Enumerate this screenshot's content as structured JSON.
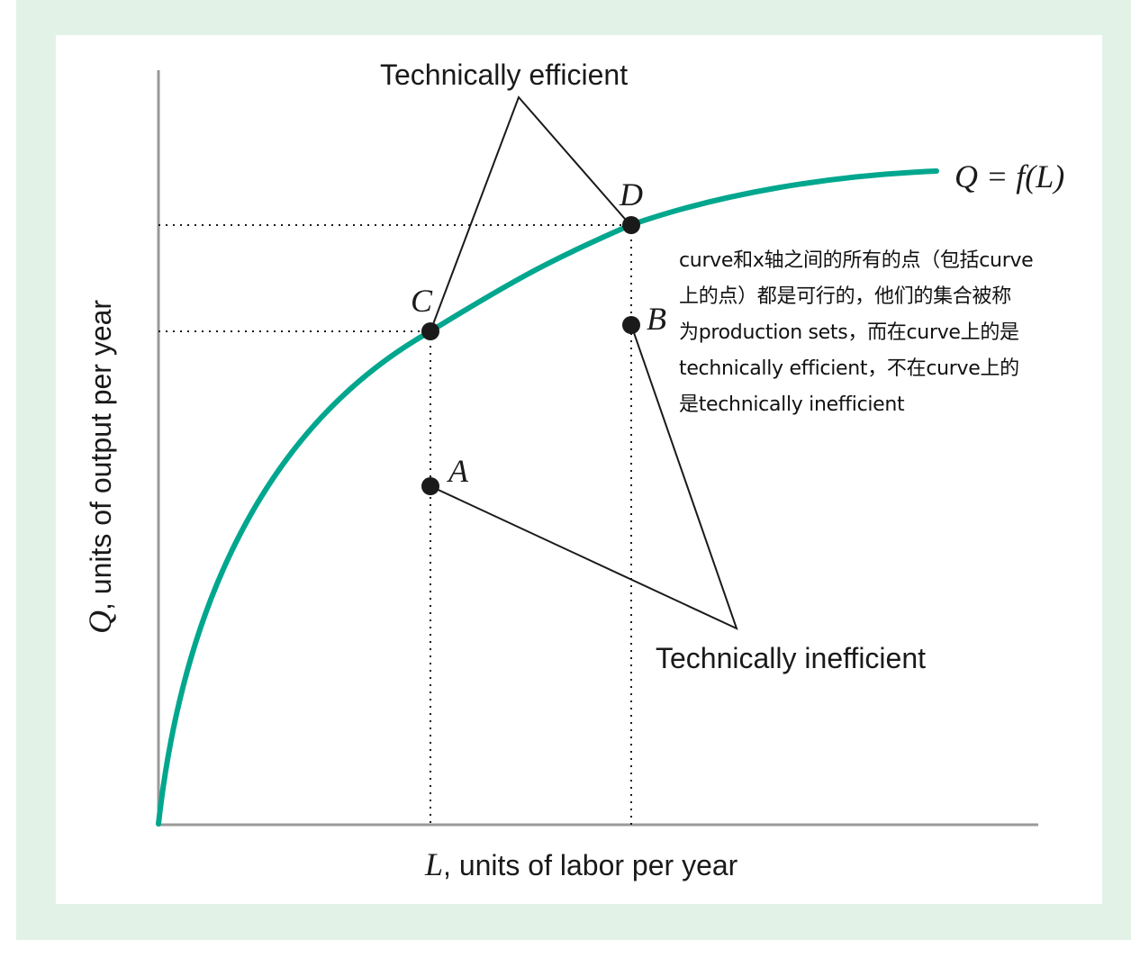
{
  "colors": {
    "curve": "#00a78e",
    "axis": "#999999",
    "ink": "#1a1a1a",
    "frame": "#e2f2e7"
  },
  "labels": {
    "technically_efficient": "Technically efficient",
    "technically_inefficient": "Technically inefficient",
    "curve_label": "Q = f(L)",
    "point_a": "A",
    "point_b": "B",
    "point_c": "C",
    "point_d": "D",
    "x_axis_var": "L",
    "x_axis_text": ", units of labor per year",
    "y_axis_var": "Q",
    "y_axis_text": ", units of output per year"
  },
  "annotation": {
    "lines": [
      "curve和x轴之间的所有的点（包括curve",
      "上的点）都是可行的，他们的集合被称",
      "为production sets，而在curve上的是",
      "technically efficient，不在curve上的",
      "是technically inefficient"
    ]
  }
}
